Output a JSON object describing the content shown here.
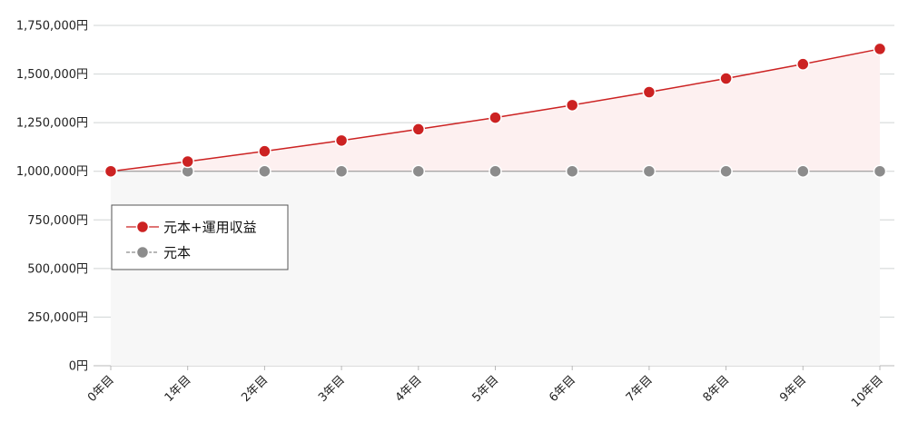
{
  "chart_data": {
    "type": "line",
    "title": "",
    "xlabel": "",
    "ylabel": "",
    "categories": [
      "0年目",
      "1年目",
      "2年目",
      "3年目",
      "4年目",
      "5年目",
      "6年目",
      "7年目",
      "8年目",
      "9年目",
      "10年目"
    ],
    "ylim": [
      0,
      1750000
    ],
    "y_ticks": [
      {
        "value": 0,
        "label": "0円"
      },
      {
        "value": 250000,
        "label": "250,000円"
      },
      {
        "value": 500000,
        "label": "500,000円"
      },
      {
        "value": 750000,
        "label": "750,000円"
      },
      {
        "value": 1000000,
        "label": "1,000,000円"
      },
      {
        "value": 1250000,
        "label": "1,250,000円"
      },
      {
        "value": 1500000,
        "label": "1,500,000円"
      },
      {
        "value": 1750000,
        "label": "1,750,000円"
      }
    ],
    "grid": true,
    "legend_position": "left-middle",
    "series": [
      {
        "name": "元本+運用収益",
        "color": "#cc2222",
        "fill": "#fdf0f0",
        "values": [
          1000000,
          1050000,
          1103000,
          1158000,
          1216000,
          1276000,
          1340000,
          1407000,
          1477000,
          1551000,
          1629000
        ]
      },
      {
        "name": "元本",
        "color": "#8c8c8c",
        "fill": "#f7f7f7",
        "values": [
          1000000,
          1000000,
          1000000,
          1000000,
          1000000,
          1000000,
          1000000,
          1000000,
          1000000,
          1000000,
          1000000
        ]
      }
    ]
  }
}
